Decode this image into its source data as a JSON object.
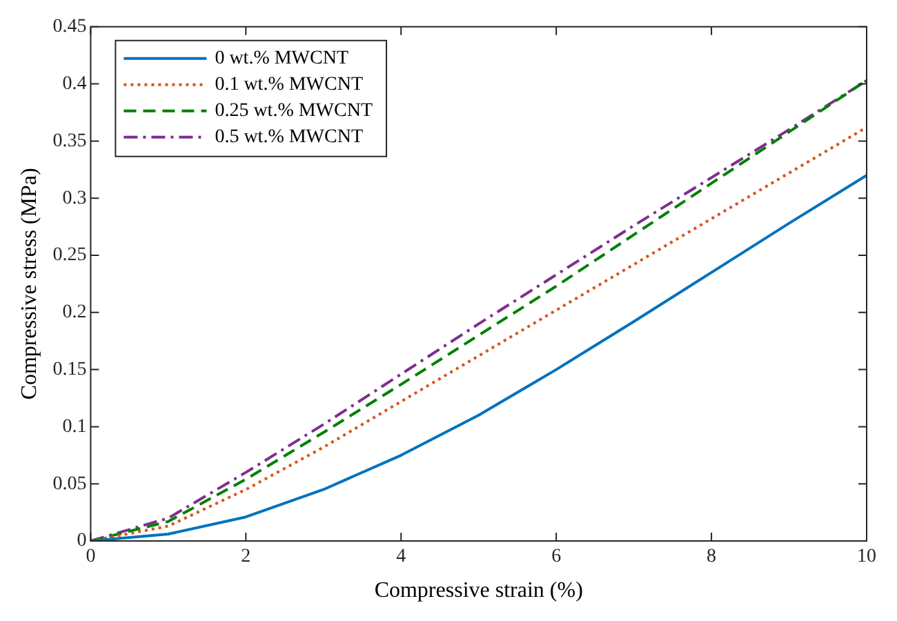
{
  "chart_data": {
    "type": "line",
    "xlabel": "Compressive strain (%)",
    "ylabel": "Compressive stress (MPa)",
    "x": [
      0,
      1,
      2,
      3,
      4,
      5,
      6,
      7,
      8,
      9,
      10
    ],
    "series": [
      {
        "name": "0 wt.% MWCNT",
        "color": "#0072bd",
        "line_style": "solid",
        "values": [
          0,
          0.006,
          0.021,
          0.045,
          0.075,
          0.11,
          0.15,
          0.192,
          0.235,
          0.278,
          0.32
        ]
      },
      {
        "name": "0.1 wt.% MWCNT",
        "color": "#d95319",
        "line_style": "dotted",
        "values": [
          0,
          0.013,
          0.045,
          0.082,
          0.122,
          0.162,
          0.202,
          0.242,
          0.282,
          0.322,
          0.362
        ]
      },
      {
        "name": "0.25 wt.% MWCNT",
        "color": "#008000",
        "line_style": "dashed",
        "values": [
          0,
          0.017,
          0.054,
          0.095,
          0.137,
          0.18,
          0.223,
          0.268,
          0.313,
          0.358,
          0.403
        ]
      },
      {
        "name": "0.5 wt.% MWCNT",
        "color": "#7e2f8e",
        "line_style": "dashdot",
        "values": [
          0,
          0.02,
          0.06,
          0.102,
          0.146,
          0.19,
          0.233,
          0.276,
          0.318,
          0.36,
          0.403
        ]
      }
    ],
    "xlim": [
      0,
      10
    ],
    "xticks": [
      0,
      2,
      4,
      6,
      8,
      10
    ],
    "ylim": [
      0,
      0.45
    ],
    "yticks": [
      0,
      0.05,
      0.1,
      0.15,
      0.2,
      0.25,
      0.3,
      0.35,
      0.4,
      0.45
    ],
    "legend": "top left",
    "marker": "none"
  }
}
